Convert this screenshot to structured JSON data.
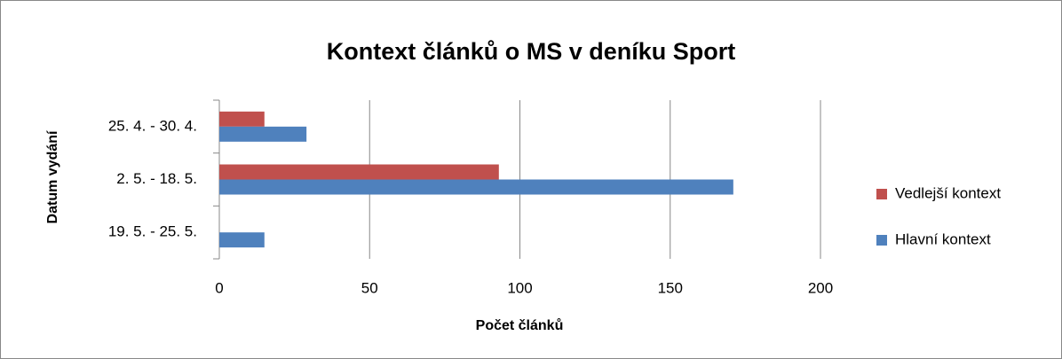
{
  "chart_data": {
    "type": "barh",
    "title": "Kontext článků o MS v deníku Sport",
    "xlabel": "Počet článků",
    "ylabel": "Datum vydání",
    "categories": [
      "25. 4. - 30. 4.",
      "2. 5. - 18. 5.",
      "19. 5. - 25. 5."
    ],
    "series": [
      {
        "name": "Vedlejší kontext",
        "color": "#c0504d",
        "values": [
          15,
          93,
          0
        ]
      },
      {
        "name": "Hlavní kontext",
        "color": "#4f81bd",
        "values": [
          29,
          171,
          15
        ]
      }
    ],
    "xlim": [
      0,
      200
    ],
    "xticks": [
      0,
      50,
      100,
      150,
      200
    ],
    "grid": true,
    "legend": "right"
  }
}
